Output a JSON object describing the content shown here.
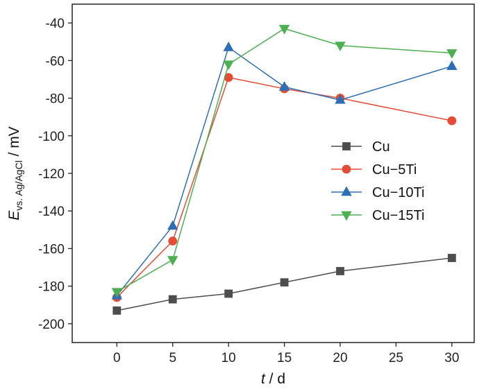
{
  "chart_data": {
    "type": "line",
    "x": [
      0,
      5,
      10,
      15,
      20,
      30
    ],
    "series": [
      {
        "name": "Cu",
        "color": "#4d4d4d",
        "marker": "square",
        "values": [
          -193,
          -187,
          -184,
          -178,
          -172,
          -165
        ]
      },
      {
        "name": "Cu−5Ti",
        "color": "#e64b35",
        "marker": "circle",
        "values": [
          -186,
          -156,
          -69,
          -75,
          -80,
          -92
        ]
      },
      {
        "name": "Cu−10Ti",
        "color": "#2c6fb7",
        "marker": "triangle-up",
        "values": [
          -185,
          -148,
          -53,
          -74,
          -81,
          -63
        ]
      },
      {
        "name": "Cu−15Ti",
        "color": "#4caf50",
        "marker": "triangle-down",
        "values": [
          -183,
          -166,
          -62,
          -43,
          -52,
          -56
        ]
      }
    ],
    "xlabel_italic": "t",
    "xlabel_rest": " / d",
    "ylabel_italic": "E",
    "ylabel_sub": "vs. Ag/AgCl",
    "ylabel_rest": " / mV",
    "xlim": [
      -4,
      32
    ],
    "ylim": [
      -210,
      -30
    ],
    "xticks": [
      0,
      5,
      10,
      15,
      20,
      25,
      30
    ],
    "yticks": [
      -200,
      -180,
      -160,
      -140,
      -120,
      -100,
      -80,
      -60,
      -40
    ],
    "grid": false,
    "legend_position": "center-right"
  }
}
